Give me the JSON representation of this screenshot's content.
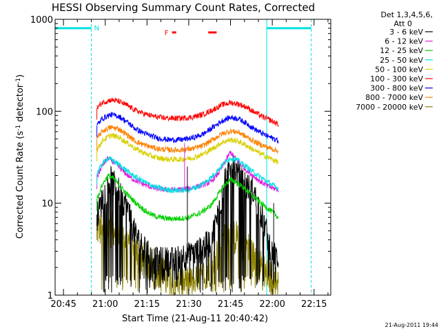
{
  "chart_data": {
    "type": "line",
    "title": "HESSI Observing Summary Count Rates, Corrected",
    "xlabel": "Start Time (21-Aug-11 20:40:42)",
    "ylabel": "Corrected Count Rate (s",
    "ylabel_sup1": "-1",
    "ylabel_mid": " detector",
    "ylabel_sup2": "-1",
    "ylabel_end": ")",
    "yscale": "log",
    "ylim": [
      1,
      1000
    ],
    "y_ticks": [
      {
        "value": 1,
        "label": "1"
      },
      {
        "value": 10,
        "label": "10"
      },
      {
        "value": 100,
        "label": "100"
      },
      {
        "value": 1000,
        "label": "1000"
      }
    ],
    "xlim_min": [
      1242,
      1341
    ],
    "x_ticks": [
      {
        "value": 1245,
        "label": "20:45"
      },
      {
        "value": 1260,
        "label": "21:00"
      },
      {
        "value": 1275,
        "label": "21:15"
      },
      {
        "value": 1290,
        "label": "21:30"
      },
      {
        "value": 1305,
        "label": "21:45"
      },
      {
        "value": 1320,
        "label": "22:00"
      },
      {
        "value": 1335,
        "label": "22:15"
      }
    ],
    "legend_header": [
      "Det 1,3,4,5,6,",
      "Att 0"
    ],
    "legend_placement": "right",
    "series": [
      {
        "name": "3 - 6 keV",
        "color": "#000000",
        "x": [
          1257,
          1260,
          1262,
          1265,
          1268,
          1270,
          1272,
          1275,
          1278,
          1282,
          1285,
          1288,
          1291,
          1294,
          1298,
          1301,
          1303,
          1305,
          1307,
          1310,
          1313,
          1316,
          1320,
          1322.2
        ],
        "y": [
          7.5,
          14,
          19,
          14,
          9,
          5.5,
          4,
          3,
          2.5,
          2.5,
          2.5,
          2.8,
          2.8,
          3.2,
          4,
          9,
          18,
          28,
          23,
          17,
          14,
          8,
          3,
          2.5
        ]
      },
      {
        "name": "6 - 12 keV",
        "color": "#e020e0",
        "x": [
          1257,
          1259,
          1261,
          1263,
          1266,
          1269,
          1272,
          1275,
          1278,
          1282,
          1286,
          1290,
          1294,
          1298,
          1301,
          1303,
          1305,
          1307,
          1310,
          1313,
          1316,
          1319,
          1322.2
        ],
        "y": [
          19,
          26,
          31,
          28,
          23,
          19,
          17,
          15.5,
          14.5,
          14,
          14,
          14.5,
          15.5,
          17,
          22,
          28,
          36,
          30,
          24,
          20,
          17,
          15,
          14
        ]
      },
      {
        "name": "12 - 25 keV",
        "color": "#00d000",
        "x": [
          1257,
          1259,
          1261,
          1263,
          1266,
          1269,
          1272,
          1275,
          1278,
          1282,
          1286,
          1290,
          1294,
          1298,
          1301,
          1303,
          1305,
          1307,
          1310,
          1313,
          1316,
          1319,
          1322.2
        ],
        "y": [
          11,
          16,
          20,
          18.5,
          14.5,
          11.5,
          9.5,
          8,
          7.2,
          6.8,
          6.8,
          7,
          7.8,
          9.5,
          13,
          16,
          18,
          17,
          14.5,
          12,
          10,
          8.5,
          7
        ]
      },
      {
        "name": "25 - 50 keV",
        "color": "#00e0e0",
        "x": [
          1257,
          1259,
          1261,
          1263,
          1266,
          1269,
          1272,
          1275,
          1278,
          1282,
          1286,
          1290,
          1294,
          1298,
          1301,
          1303,
          1305,
          1307,
          1310,
          1313,
          1316,
          1319,
          1322.2
        ],
        "y": [
          21,
          27,
          31,
          29,
          25,
          21,
          18.5,
          16.5,
          15,
          14,
          13.8,
          14,
          15.5,
          19,
          24,
          28,
          31,
          30,
          26,
          22,
          19,
          16.5,
          14.5
        ]
      },
      {
        "name": "50 - 100 keV",
        "color": "#d8d000",
        "x": [
          1257,
          1259,
          1262,
          1265,
          1268,
          1271,
          1275,
          1279,
          1283,
          1287,
          1291,
          1295,
          1299,
          1302,
          1305,
          1308,
          1311,
          1314,
          1317,
          1320,
          1322.2
        ],
        "y": [
          38,
          48,
          55,
          52,
          45,
          39,
          34,
          31,
          30,
          30,
          31,
          34,
          40,
          46,
          49,
          47,
          42,
          37,
          33,
          30,
          28
        ]
      },
      {
        "name": "100 - 300 keV",
        "color": "#ff0000",
        "x": [
          1257,
          1259,
          1262,
          1265,
          1268,
          1271,
          1275,
          1279,
          1283,
          1287,
          1291,
          1295,
          1299,
          1302,
          1305,
          1308,
          1311,
          1314,
          1317,
          1320,
          1322.2
        ],
        "y": [
          108,
          125,
          133,
          128,
          115,
          102,
          92,
          86,
          84,
          84,
          86,
          92,
          105,
          118,
          124,
          120,
          110,
          96,
          86,
          78,
          72
        ]
      },
      {
        "name": "300 - 800 keV",
        "color": "#0000ff",
        "x": [
          1257,
          1259,
          1262,
          1265,
          1268,
          1271,
          1275,
          1279,
          1283,
          1287,
          1291,
          1295,
          1299,
          1302,
          1305,
          1308,
          1311,
          1314,
          1317,
          1320,
          1322.2
        ],
        "y": [
          70,
          84,
          92,
          88,
          76,
          64,
          56,
          51,
          49,
          49,
          51,
          56,
          68,
          79,
          86,
          83,
          73,
          63,
          56,
          51,
          48
        ]
      },
      {
        "name": "800 - 7000 keV",
        "color": "#ff8000",
        "x": [
          1257,
          1259,
          1262,
          1265,
          1268,
          1271,
          1275,
          1279,
          1283,
          1287,
          1291,
          1295,
          1299,
          1302,
          1305,
          1308,
          1311,
          1314,
          1317,
          1320,
          1322.2
        ],
        "y": [
          50,
          61,
          67,
          64,
          55,
          47,
          42,
          39,
          38,
          38,
          39,
          42,
          50,
          57,
          61,
          59,
          52,
          46,
          42,
          39,
          37
        ]
      },
      {
        "name": "7000 - 20000 keV",
        "color": "#8b8000",
        "x": [
          1257,
          1259,
          1262,
          1265,
          1268,
          1271,
          1275,
          1279,
          1283,
          1287,
          1291,
          1295,
          1299,
          1302,
          1305,
          1308,
          1311,
          1314,
          1317,
          1320,
          1322.2
        ],
        "y": [
          5.3,
          5.8,
          5.8,
          5.3,
          4,
          3,
          2.5,
          2,
          1.6,
          1.4,
          1.4,
          1.6,
          2.5,
          4,
          4.8,
          4.5,
          3.5,
          2.5,
          2,
          1.6,
          1.4
        ]
      }
    ],
    "night_markers": {
      "label": "N",
      "color": "#00e0e0",
      "bar_y": 800,
      "bars": [
        [
          1242,
          1255
        ],
        [
          1318,
          1334
        ]
      ],
      "solid_vlines": [
        1242,
        1318
      ],
      "dashed_vlines": [
        1255,
        1334
      ]
    },
    "flare_markers": {
      "label": "F",
      "color": "#ff0000",
      "label_x": 1282,
      "bar_y": 720,
      "bars": [
        [
          1284,
          1285.5
        ],
        [
          1297,
          1300
        ]
      ]
    },
    "overlay_vlines": [
      {
        "x": 1288.5,
        "color": "#e020e0",
        "from": 14,
        "to": 45
      },
      {
        "x": 1289.5,
        "color": "#000000",
        "from": 2.5,
        "to": 25
      },
      {
        "x": 1320.5,
        "color": "#000000",
        "from": 2.5,
        "to": 10
      }
    ],
    "timestamp": "21-Aug-2011 19:44"
  }
}
